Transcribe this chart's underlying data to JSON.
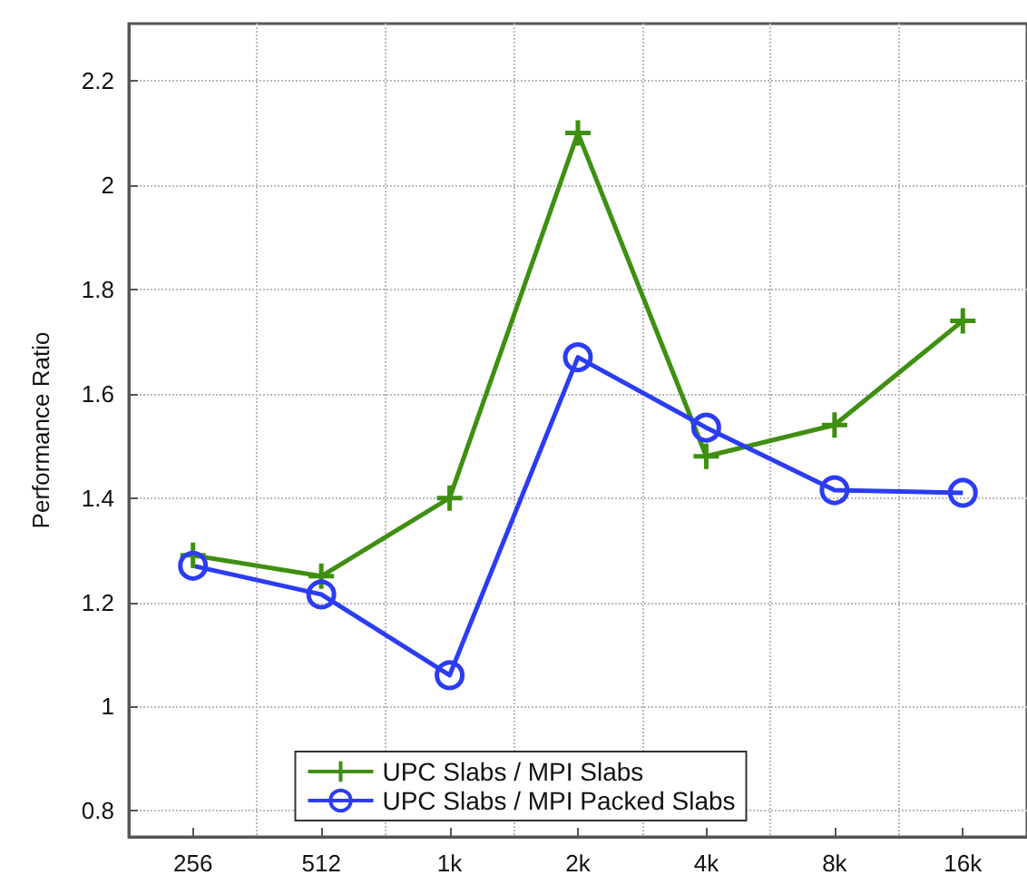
{
  "chart_data": {
    "type": "line",
    "ylabel": "Performance Ratio",
    "categories": [
      "256",
      "512",
      "1k",
      "2k",
      "4k",
      "8k",
      "16k"
    ],
    "series": [
      {
        "name": "UPC Slabs / MPI Slabs",
        "color": "#3f8f10",
        "marker": "cross",
        "values": [
          1.29,
          1.25,
          1.4,
          2.1,
          1.48,
          1.54,
          1.74
        ]
      },
      {
        "name": "UPC Slabs / MPI Packed Slabs",
        "color": "#2b3cf5",
        "marker": "circle",
        "values": [
          1.27,
          1.215,
          1.06,
          1.67,
          1.535,
          1.415,
          1.41
        ]
      }
    ],
    "ylim": [
      0.75,
      2.31
    ],
    "yticks": [
      0.8,
      1,
      1.2,
      1.4,
      1.6,
      1.8,
      2,
      2.2
    ],
    "grid": true,
    "legend": "bottom",
    "line_style": "solid"
  }
}
